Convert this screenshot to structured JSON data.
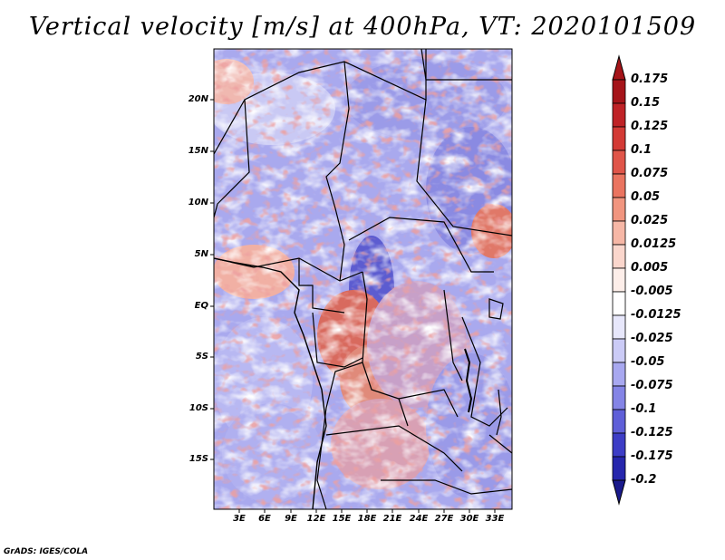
{
  "title": "Vertical velocity [m/s] at 400hPa, VT: 2020101509",
  "credit": "GrADS: IGES/COLA",
  "map": {
    "lat_labels": [
      "20N",
      "15N",
      "10N",
      "5N",
      "EQ",
      "5S",
      "10S",
      "15S"
    ],
    "lon_labels": [
      "3E",
      "6E",
      "9E",
      "12E",
      "15E",
      "18E",
      "21E",
      "24E",
      "27E",
      "30E",
      "33E"
    ]
  },
  "colorbar": {
    "levels": [
      "0.175",
      "0.15",
      "0.125",
      "0.1",
      "0.075",
      "0.05",
      "0.025",
      "0.0125",
      "0.005",
      "-0.005",
      "-0.0125",
      "-0.025",
      "-0.05",
      "-0.075",
      "-0.1",
      "-0.125",
      "-0.175",
      "-0.2"
    ],
    "colors": [
      "#a51419",
      "#bf2226",
      "#d33a35",
      "#e05549",
      "#ea7460",
      "#f1957f",
      "#f6b7a6",
      "#fad6cc",
      "#fdeee9",
      "#ffffff",
      "#e7e7fb",
      "#cbcbf6",
      "#a8a8f0",
      "#8484e6",
      "#5f5fd8",
      "#3d3dc6",
      "#2626ad",
      "#1a1a8c"
    ]
  }
}
